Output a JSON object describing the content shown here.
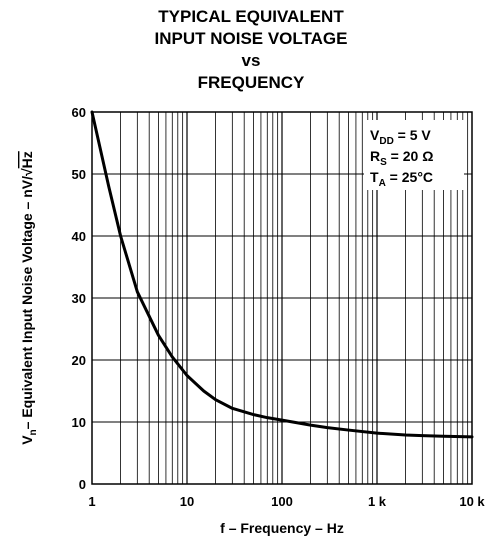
{
  "chart_data": {
    "type": "line",
    "title": [
      "TYPICAL EQUIVALENT",
      "INPUT NOISE VOLTAGE",
      "vs",
      "FREQUENCY"
    ],
    "xlabel": "f – Frequency – Hz",
    "ylabel_parts": {
      "symbol": "V",
      "subscript": "n",
      "text": "– Equivalent Input Noise Voltage – nV/",
      "radical": "√",
      "radicand": "Hz"
    },
    "x_scale": "log",
    "xlim": [
      1,
      10000
    ],
    "ylim": [
      0,
      60
    ],
    "x_ticks": [
      1,
      10,
      100,
      1000,
      10000
    ],
    "x_tick_labels": [
      "1",
      "10",
      "100",
      "1 k",
      "10 k"
    ],
    "y_ticks": [
      0,
      10,
      20,
      30,
      40,
      50,
      60
    ],
    "y_tick_labels": [
      "0",
      "10",
      "20",
      "30",
      "40",
      "50",
      "60"
    ],
    "grid": true,
    "conditions": [
      {
        "symbol": "V",
        "sub": "DD",
        "value": " = 5 V"
      },
      {
        "symbol": "R",
        "sub": "S",
        "value": " = 20 Ω"
      },
      {
        "symbol": "T",
        "sub": "A",
        "value": " = 25°C"
      }
    ],
    "series": [
      {
        "x": [
          1,
          1.5,
          2,
          3,
          5,
          7,
          10,
          15,
          20,
          30,
          50,
          70,
          100,
          200,
          300,
          500,
          1000,
          2000,
          3000,
          5000,
          10000
        ],
        "values": [
          60,
          48,
          40,
          31,
          24,
          20.5,
          17.5,
          15,
          13.6,
          12.2,
          11.2,
          10.7,
          10.3,
          9.5,
          9.1,
          8.7,
          8.2,
          7.9,
          7.8,
          7.7,
          7.6
        ]
      }
    ]
  }
}
